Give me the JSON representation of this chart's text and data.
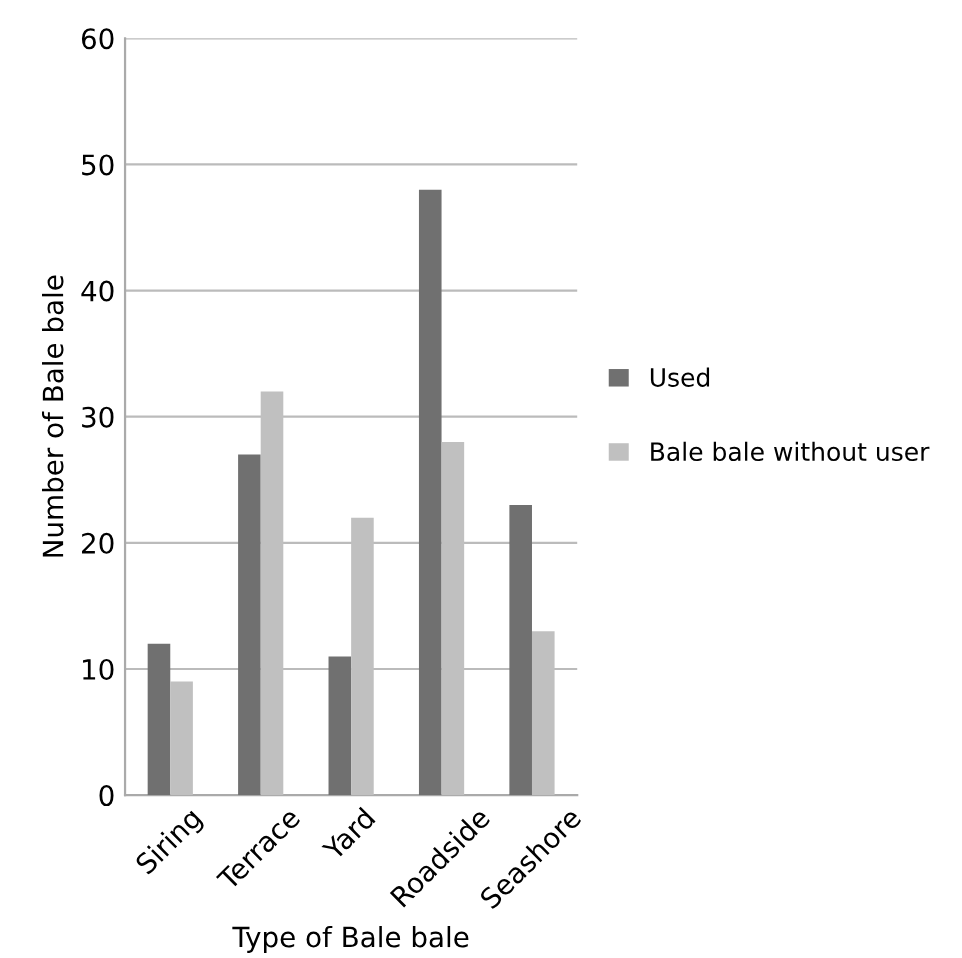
{
  "chart_data": {
    "type": "bar",
    "xlabel": "Type of Bale bale",
    "ylabel": "Number of Bale bale",
    "categories": [
      "Siring",
      "Terrace",
      "Yard",
      "Roadside",
      "Seashore"
    ],
    "series": [
      {
        "name": "Used",
        "color": "#707070",
        "values": [
          12,
          27,
          11,
          48,
          23
        ]
      },
      {
        "name": "Bale bale without user",
        "color": "#c0c0c0",
        "values": [
          9,
          32,
          22,
          28,
          13
        ]
      }
    ],
    "ylim": [
      0,
      60
    ],
    "yticks": [
      0,
      10,
      20,
      30,
      40,
      50,
      60
    ],
    "grid": "y",
    "legend": "right"
  }
}
